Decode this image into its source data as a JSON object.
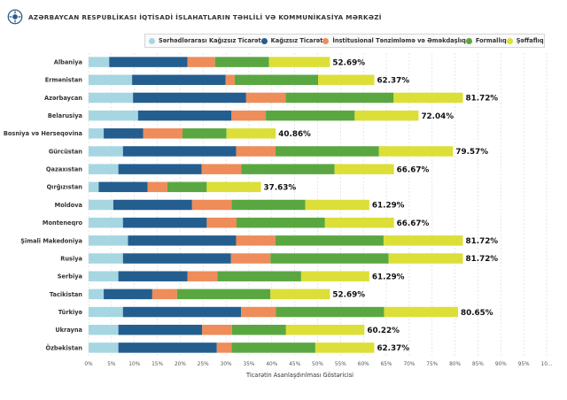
{
  "header": {
    "title": "AZƏRBAYCAN RESPUBLİKASI İQTİSADİ İSLAHATLARIN TƏHLİLİ VƏ KOMMUNİKASİYA MƏRKƏZİ"
  },
  "colors": {
    "accent": "#2a5c8a",
    "emblem": "#2a5c8a"
  },
  "chart_data": {
    "type": "bar",
    "orientation": "horizontal",
    "stacked": true,
    "title": "",
    "xlabel": "Ticarətin Asanlaşdırılması Göstəricisi",
    "ylabel": "",
    "xlim": [
      0,
      100
    ],
    "grid": "vertical",
    "legend_position": "top",
    "x_tick_labels": [
      "0%",
      "5%",
      "10%",
      "15%",
      "20%",
      "25%",
      "30%",
      "35%",
      "40%",
      "45%",
      "50%",
      "55%",
      "60%",
      "65%",
      "70%",
      "75%",
      "80%",
      "85%",
      "90%",
      "95%",
      "10..."
    ],
    "categories": [
      "Albaniya",
      "Ermənistan",
      "Azərbaycan",
      "Belarusiya",
      "Bosniya və Herseqovina",
      "Gürcüstan",
      "Qazaxıstan",
      "Qırğızıstan",
      "Moldova",
      "Monteneqro",
      "Şimali Makedoniya",
      "Rusiya",
      "Serbiya",
      "Tacikistan",
      "Türkiyə",
      "Ukrayna",
      "Özbəkistan"
    ],
    "series": [
      {
        "name": "Sərhədlərarası Kağızsız Ticarət",
        "color": "#a6d6e2",
        "values": [
          4.5,
          9.5,
          9.7,
          10.8,
          3.3,
          7.5,
          6.5,
          2.2,
          5.4,
          7.5,
          8.6,
          7.5,
          6.5,
          3.3,
          7.5,
          6.5,
          6.5
        ]
      },
      {
        "name": "Kağızsız Ticarət",
        "color": "#245e8f",
        "values": [
          17.1,
          20.4,
          24.7,
          20.4,
          8.6,
          24.7,
          18.2,
          10.7,
          17.2,
          18.3,
          23.6,
          23.6,
          15.1,
          10.6,
          25.8,
          18.3,
          21.5
        ]
      },
      {
        "name": "İnstitusional Tənzimləmə və Əməkdaşlıq",
        "color": "#ee8c5a",
        "values": [
          6.0,
          2.0,
          8.6,
          7.5,
          8.6,
          8.6,
          8.6,
          4.3,
          8.6,
          6.5,
          8.6,
          8.6,
          6.5,
          5.4,
          7.6,
          6.5,
          3.2
        ]
      },
      {
        "name": "Formallıq",
        "color": "#5aa742",
        "values": [
          11.8,
          18.2,
          23.6,
          19.4,
          9.6,
          22.6,
          20.4,
          8.6,
          16.1,
          19.3,
          23.6,
          25.8,
          18.3,
          20.4,
          23.6,
          11.8,
          18.3
        ]
      },
      {
        "name": "Şəffaflıq",
        "color": "#dcdf37",
        "values": [
          13.29,
          12.27,
          15.12,
          13.94,
          10.76,
          16.17,
          12.97,
          11.83,
          13.99,
          15.07,
          17.32,
          16.22,
          14.89,
          12.99,
          16.15,
          17.12,
          12.87
        ]
      }
    ],
    "totals": [
      "52.69%",
      "62.37%",
      "81.72%",
      "72.04%",
      "40.86%",
      "79.57%",
      "66.67%",
      "37.63%",
      "61.29%",
      "66.67%",
      "81.72%",
      "81.72%",
      "61.29%",
      "52.69%",
      "80.65%",
      "60.22%",
      "62.37%"
    ]
  }
}
